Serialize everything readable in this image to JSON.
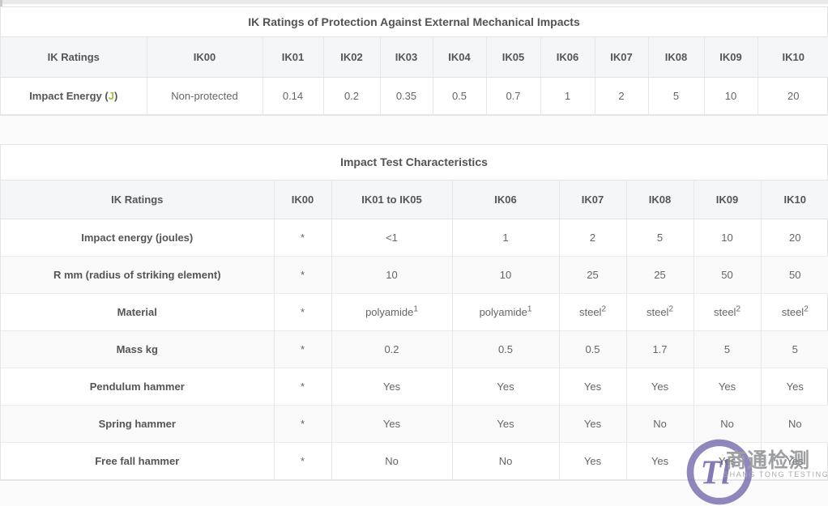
{
  "tables": [
    {
      "title": "IK Ratings of Protection Against External Mechanical Impacts",
      "header": [
        "IK Ratings",
        "IK00",
        "IK01",
        "IK02",
        "IK03",
        "IK04",
        "IK05",
        "IK06",
        "IK07",
        "IK08",
        "IK09",
        "IK10"
      ],
      "rows": [
        [
          {
            "parts": [
              {
                "text": "Impact Energy ("
              },
              {
                "text": "J",
                "green": true
              },
              {
                "text": ")"
              }
            ]
          },
          "Non-protected",
          "0.14",
          "0.2",
          "0.35",
          "0.5",
          "0.7",
          "1",
          "2",
          "5",
          "10",
          "20"
        ]
      ]
    },
    {
      "title": "Impact Test Characteristics",
      "header": [
        "IK Ratings",
        "IK00",
        "IK01 to IK05",
        "IK06",
        "IK07",
        "IK08",
        "IK09",
        "IK10"
      ],
      "rows": [
        [
          "Impact energy (joules)",
          "*",
          "<1",
          "1",
          "2",
          "5",
          "10",
          "20"
        ],
        [
          "R mm (radius of striking element)",
          "*",
          "10",
          "10",
          "25",
          "25",
          "50",
          "50"
        ],
        [
          "Material",
          "*",
          {
            "parts": [
              {
                "text": "polyamide"
              },
              {
                "text": "1",
                "sup": true
              }
            ]
          },
          {
            "parts": [
              {
                "text": "polyamide"
              },
              {
                "text": "1",
                "sup": true
              }
            ]
          },
          {
            "parts": [
              {
                "text": "steel"
              },
              {
                "text": "2",
                "sup": true
              }
            ]
          },
          {
            "parts": [
              {
                "text": "steel"
              },
              {
                "text": "2",
                "sup": true
              }
            ]
          },
          {
            "parts": [
              {
                "text": "steel"
              },
              {
                "text": "2",
                "sup": true
              }
            ]
          },
          {
            "parts": [
              {
                "text": "steel"
              },
              {
                "text": "2",
                "sup": true
              }
            ]
          }
        ],
        [
          "Mass kg",
          "*",
          "0.2",
          "0.5",
          "0.5",
          "1.7",
          "5",
          "5"
        ],
        [
          "Pendulum hammer",
          "*",
          "Yes",
          "Yes",
          "Yes",
          "Yes",
          "Yes",
          "Yes"
        ],
        [
          "Spring hammer",
          "*",
          "Yes",
          "Yes",
          "Yes",
          "No",
          "No",
          "No"
        ],
        [
          "Free fall hammer",
          "*",
          "No",
          "No",
          "Yes",
          "Yes",
          "Yes",
          "Yes"
        ]
      ]
    }
  ],
  "watermark": {
    "monogram": "Tl",
    "cn_text": "商通检测",
    "en_text": "SHANG TONG TESTING"
  },
  "colors": {
    "accent_green": "#9ac23c",
    "watermark_purple": "#6f63a9",
    "header_bg": "#f5f6f7",
    "border": "#e5e5e5"
  }
}
